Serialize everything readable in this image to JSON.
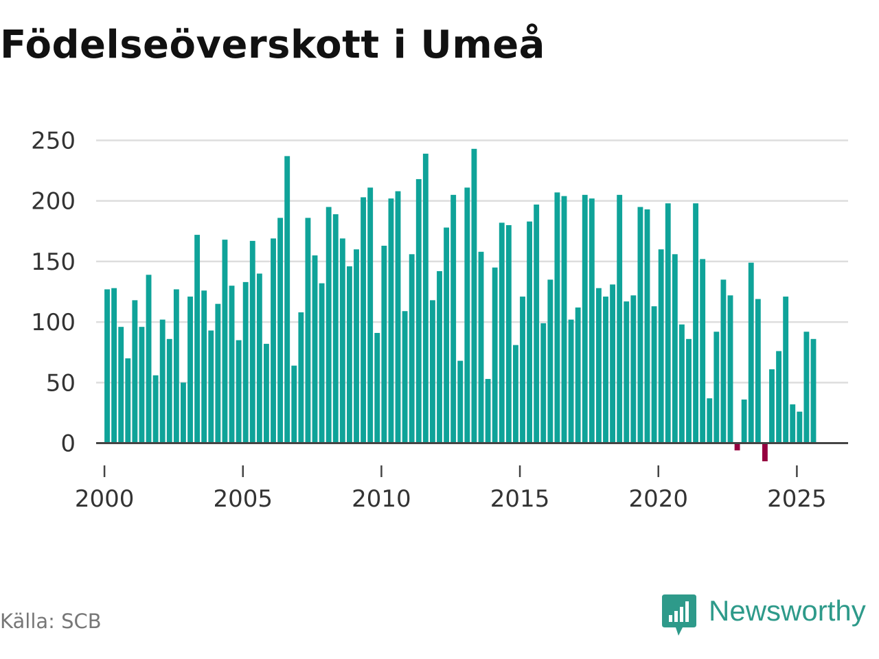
{
  "title": "Födelseöverskott i Umeå",
  "source": "Källa: SCB",
  "brand": {
    "name": "Newsworthy",
    "icon": "newsworthy-logo-icon"
  },
  "colors": {
    "positive": "#0fa399",
    "negative": "#960040",
    "grid": "#dddddd",
    "zero_line": "#444444",
    "brand": "#2e9a8a"
  },
  "chart_data": {
    "type": "bar",
    "title": "Födelseöverskott i Umeå",
    "xlabel": "",
    "ylabel": "",
    "ylim": [
      -15,
      265
    ],
    "xlim": [
      1999.7,
      2026.85
    ],
    "yticks": [
      0,
      50,
      100,
      150,
      200,
      250
    ],
    "xticks": [
      2000,
      2005,
      2010,
      2015,
      2020,
      2025
    ],
    "grid": true,
    "legend": "none",
    "start": "2000-01",
    "frequency": "quarterly",
    "values": [
      127,
      128,
      96,
      70,
      118,
      96,
      139,
      56,
      102,
      86,
      127,
      50,
      121,
      172,
      126,
      93,
      115,
      168,
      130,
      85,
      133,
      167,
      140,
      82,
      169,
      186,
      237,
      64,
      108,
      186,
      155,
      132,
      195,
      189,
      169,
      146,
      160,
      203,
      211,
      91,
      163,
      202,
      208,
      109,
      156,
      218,
      239,
      118,
      142,
      178,
      205,
      68,
      211,
      243,
      158,
      53,
      145,
      182,
      180,
      81,
      121,
      183,
      197,
      99,
      135,
      207,
      204,
      102,
      112,
      205,
      202,
      128,
      121,
      131,
      205,
      117,
      122,
      195,
      193,
      113,
      160,
      198,
      156,
      98,
      86,
      198,
      152,
      37,
      92,
      135,
      122,
      -6,
      36,
      149,
      119,
      -15,
      61,
      76,
      121,
      32,
      26,
      92,
      86
    ]
  }
}
